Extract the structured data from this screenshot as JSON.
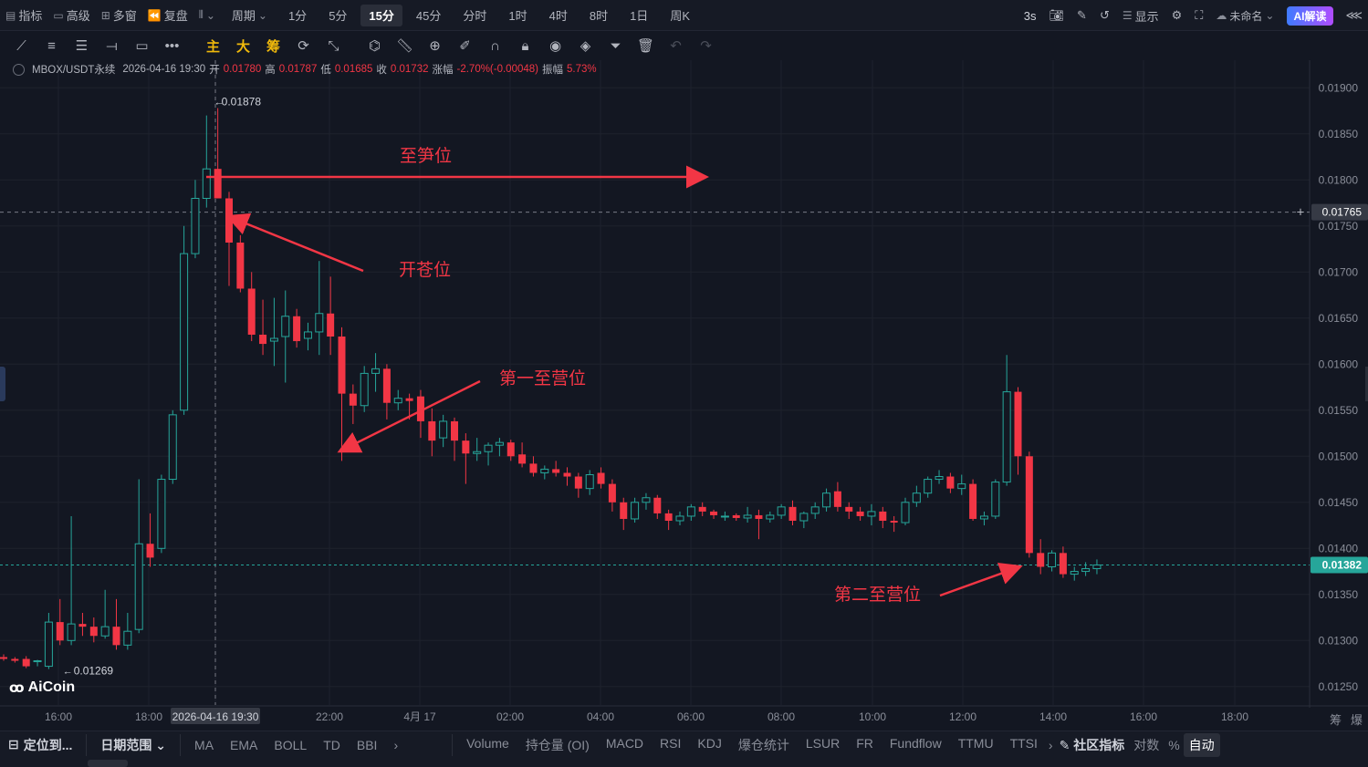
{
  "topbar": {
    "items": [
      {
        "icon": "indicator-icon",
        "label": "指标"
      },
      {
        "icon": "advanced-icon",
        "label": "高级"
      },
      {
        "icon": "multi-window-icon",
        "label": "多窗"
      },
      {
        "icon": "replay-icon",
        "label": "复盘"
      },
      {
        "icon": "chart-type-icon",
        "label": ""
      }
    ],
    "period_label": "周期",
    "periods": [
      "1分",
      "5分",
      "15分",
      "45分",
      "分时",
      "1时",
      "4时",
      "8时",
      "1日",
      "周K"
    ],
    "active_period": "15分",
    "right": {
      "refresh": "3s",
      "display": "显示",
      "layout_name": "未命名",
      "ai": "AI解读"
    }
  },
  "legend": {
    "symbol": "MBOX/USDT永续",
    "datetime": "2026-04-16 19:30",
    "open_label": "开",
    "open": "0.01780",
    "high_label": "高",
    "high": "0.01787",
    "low_label": "低",
    "low": "0.01685",
    "close_label": "收",
    "close": "0.01732",
    "change_label": "涨幅",
    "change": "-2.70%(-0.00048)",
    "amp_label": "振幅",
    "amp": "5.73%"
  },
  "chart_data": {
    "type": "candlestick",
    "y_ticks": [
      "0.01900",
      "0.01850",
      "0.01800",
      "0.01750",
      "0.01700",
      "0.01650",
      "0.01600",
      "0.01550",
      "0.01500",
      "0.01450",
      "0.01400",
      "0.01350",
      "0.01300",
      "0.01250"
    ],
    "ylim": [
      0.0123,
      0.0193
    ],
    "x_ticks": [
      "16:00",
      "18:00",
      "2026-04-16 19:30",
      "22:00",
      "4月 17",
      "02:00",
      "04:00",
      "06:00",
      "08:00",
      "10:00",
      "12:00",
      "14:00",
      "16:00",
      "18:00"
    ],
    "crosshair_price": "0.01765",
    "last_price": "0.01382",
    "high_marker": "0.01878",
    "low_marker": "0.01269",
    "candles": [
      [
        0.01282,
        0.01285,
        0.01278,
        0.0128
      ],
      [
        0.0128,
        0.01282,
        0.01276,
        0.01278
      ],
      [
        0.0128,
        0.01283,
        0.0127,
        0.01272
      ],
      [
        0.01277,
        0.01279,
        0.01272,
        0.01278
      ],
      [
        0.01272,
        0.0133,
        0.01269,
        0.0132
      ],
      [
        0.0132,
        0.01345,
        0.01295,
        0.013
      ],
      [
        0.013,
        0.01435,
        0.01295,
        0.01318
      ],
      [
        0.01318,
        0.0133,
        0.01305,
        0.01315
      ],
      [
        0.01315,
        0.01325,
        0.01298,
        0.01305
      ],
      [
        0.01305,
        0.01355,
        0.01302,
        0.01315
      ],
      [
        0.01315,
        0.01345,
        0.0129,
        0.01295
      ],
      [
        0.01295,
        0.0133,
        0.0129,
        0.0131
      ],
      [
        0.01312,
        0.01475,
        0.01308,
        0.01405
      ],
      [
        0.01405,
        0.01438,
        0.0138,
        0.0139
      ],
      [
        0.014,
        0.0148,
        0.01395,
        0.01475
      ],
      [
        0.01475,
        0.0155,
        0.0147,
        0.01545
      ],
      [
        0.0155,
        0.0175,
        0.01545,
        0.0172
      ],
      [
        0.0172,
        0.018,
        0.01715,
        0.0178
      ],
      [
        0.0178,
        0.0187,
        0.0177,
        0.01812
      ],
      [
        0.01812,
        0.01878,
        0.0178,
        0.0178
      ],
      [
        0.0178,
        0.01787,
        0.01685,
        0.01732
      ],
      [
        0.01732,
        0.0174,
        0.01678,
        0.01682
      ],
      [
        0.01682,
        0.017,
        0.01625,
        0.01632
      ],
      [
        0.01632,
        0.0167,
        0.0161,
        0.01622
      ],
      [
        0.01625,
        0.01672,
        0.01598,
        0.01628
      ],
      [
        0.0163,
        0.0168,
        0.0158,
        0.01652
      ],
      [
        0.01652,
        0.0166,
        0.01618,
        0.01625
      ],
      [
        0.01628,
        0.01645,
        0.01615,
        0.01635
      ],
      [
        0.01635,
        0.01712,
        0.0161,
        0.01655
      ],
      [
        0.01655,
        0.01695,
        0.0161,
        0.0163
      ],
      [
        0.0163,
        0.0164,
        0.01495,
        0.01568
      ],
      [
        0.01568,
        0.01578,
        0.01535,
        0.01555
      ],
      [
        0.01555,
        0.01598,
        0.01548,
        0.0159
      ],
      [
        0.0159,
        0.01612,
        0.0157,
        0.01595
      ],
      [
        0.01595,
        0.016,
        0.0154,
        0.01558
      ],
      [
        0.01558,
        0.01572,
        0.0155,
        0.01563
      ],
      [
        0.01563,
        0.01568,
        0.0154,
        0.0156
      ],
      [
        0.01565,
        0.01572,
        0.0152,
        0.01538
      ],
      [
        0.01538,
        0.01552,
        0.015,
        0.01517
      ],
      [
        0.0152,
        0.01545,
        0.0151,
        0.01538
      ],
      [
        0.01538,
        0.01542,
        0.01495,
        0.01517
      ],
      [
        0.01517,
        0.01525,
        0.0147,
        0.01503
      ],
      [
        0.01503,
        0.0152,
        0.01495,
        0.01505
      ],
      [
        0.01505,
        0.01515,
        0.0149,
        0.01512
      ],
      [
        0.01512,
        0.0152,
        0.015,
        0.01515
      ],
      [
        0.01515,
        0.01518,
        0.01495,
        0.015
      ],
      [
        0.01502,
        0.01515,
        0.01488,
        0.01492
      ],
      [
        0.01492,
        0.015,
        0.01478,
        0.01482
      ],
      [
        0.01482,
        0.0149,
        0.01475,
        0.01486
      ],
      [
        0.01486,
        0.01495,
        0.01478,
        0.01482
      ],
      [
        0.01482,
        0.01488,
        0.01468,
        0.01478
      ],
      [
        0.01478,
        0.01482,
        0.01455,
        0.01465
      ],
      [
        0.01465,
        0.01485,
        0.01458,
        0.0148
      ],
      [
        0.01482,
        0.01488,
        0.01465,
        0.0147
      ],
      [
        0.0147,
        0.01475,
        0.0144,
        0.0145
      ],
      [
        0.0145,
        0.01455,
        0.0142,
        0.01432
      ],
      [
        0.01432,
        0.01455,
        0.01428,
        0.0145
      ],
      [
        0.0145,
        0.0146,
        0.01442,
        0.01455
      ],
      [
        0.01455,
        0.01458,
        0.01432,
        0.01438
      ],
      [
        0.01438,
        0.01442,
        0.0142,
        0.0143
      ],
      [
        0.0143,
        0.0144,
        0.01425,
        0.01435
      ],
      [
        0.01435,
        0.01448,
        0.0143,
        0.01445
      ],
      [
        0.01445,
        0.0145,
        0.01435,
        0.0144
      ],
      [
        0.0144,
        0.01442,
        0.01432,
        0.01436
      ],
      [
        0.01435,
        0.0144,
        0.0143,
        0.01435
      ],
      [
        0.01436,
        0.01438,
        0.0143,
        0.01433
      ],
      [
        0.01433,
        0.01445,
        0.01428,
        0.01436
      ],
      [
        0.01436,
        0.01442,
        0.0141,
        0.01432
      ],
      [
        0.01432,
        0.0144,
        0.01428,
        0.01436
      ],
      [
        0.01436,
        0.01448,
        0.01432,
        0.01445
      ],
      [
        0.01445,
        0.01452,
        0.01425,
        0.0143
      ],
      [
        0.0143,
        0.0144,
        0.01422,
        0.01438
      ],
      [
        0.01438,
        0.0145,
        0.01432,
        0.01445
      ],
      [
        0.01445,
        0.01465,
        0.0144,
        0.0146
      ],
      [
        0.01462,
        0.01472,
        0.0144,
        0.01445
      ],
      [
        0.01445,
        0.0145,
        0.01432,
        0.0144
      ],
      [
        0.0144,
        0.01445,
        0.0143,
        0.01435
      ],
      [
        0.01435,
        0.01448,
        0.01425,
        0.0144
      ],
      [
        0.0144,
        0.01445,
        0.01422,
        0.0143
      ],
      [
        0.0143,
        0.01435,
        0.01418,
        0.01428
      ],
      [
        0.01428,
        0.01455,
        0.01425,
        0.0145
      ],
      [
        0.0145,
        0.01468,
        0.01445,
        0.0146
      ],
      [
        0.0146,
        0.01478,
        0.01455,
        0.01475
      ],
      [
        0.01475,
        0.01485,
        0.0147,
        0.01478
      ],
      [
        0.01478,
        0.01482,
        0.0146,
        0.01465
      ],
      [
        0.01465,
        0.0148,
        0.01458,
        0.0147
      ],
      [
        0.0147,
        0.01475,
        0.0143,
        0.01432
      ],
      [
        0.01432,
        0.0144,
        0.01425,
        0.01435
      ],
      [
        0.01435,
        0.01475,
        0.01432,
        0.01472
      ],
      [
        0.01472,
        0.0161,
        0.01468,
        0.0157
      ],
      [
        0.0157,
        0.01575,
        0.0148,
        0.015
      ],
      [
        0.015,
        0.01505,
        0.0139,
        0.01395
      ],
      [
        0.01395,
        0.0141,
        0.01372,
        0.0138
      ],
      [
        0.0138,
        0.01398,
        0.01375,
        0.01395
      ],
      [
        0.01395,
        0.01402,
        0.01368,
        0.01372
      ],
      [
        0.01372,
        0.0138,
        0.01365,
        0.01375
      ],
      [
        0.01375,
        0.01385,
        0.0137,
        0.01378
      ],
      [
        0.01378,
        0.01388,
        0.01372,
        0.01382
      ]
    ]
  },
  "annotations": {
    "take_profit": "至笋位",
    "open_position": "开苍位",
    "first_target": "第一至营位",
    "second_target": "第二至营位"
  },
  "brand": "AiCoin",
  "bottombar": {
    "locate": "定位到...",
    "date_range": "日期范围",
    "main_indicators": [
      "MA",
      "EMA",
      "BOLL",
      "TD",
      "BBI"
    ],
    "sub_indicators": [
      "Volume",
      "持仓量 (OI)",
      "MACD",
      "RSI",
      "KDJ",
      "爆仓统计",
      "LSUR",
      "FR",
      "Fundflow",
      "TTMU",
      "TTSI"
    ],
    "community": "社区指标",
    "log": "对数",
    "percent": "%",
    "auto": "自动"
  },
  "right_corner": [
    "筹",
    "爆"
  ]
}
